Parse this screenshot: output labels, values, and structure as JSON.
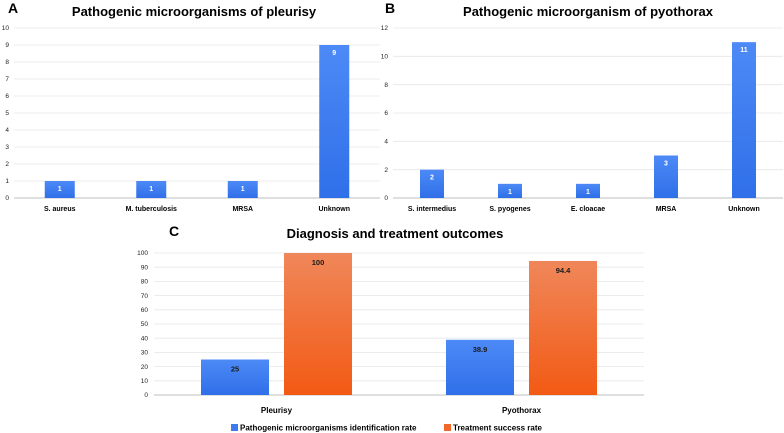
{
  "colors": {
    "blue": "#3d7bf0",
    "orange_top": "#f0875a",
    "orange_bottom": "#f25a14"
  },
  "chart_data": [
    {
      "panel": "A",
      "type": "bar",
      "title": "Pathogenic microorganisms of pleurisy",
      "categories": [
        "S. aureus",
        "M. tuberculosis",
        "MRSA",
        "Unknown"
      ],
      "values": [
        1,
        1,
        1,
        9
      ],
      "ylim": [
        0,
        10
      ],
      "yticks": [
        0,
        1,
        2,
        3,
        4,
        5,
        6,
        7,
        8,
        9,
        10
      ],
      "grid": true
    },
    {
      "panel": "B",
      "type": "bar",
      "title": "Pathogenic microorganism of pyothorax",
      "categories": [
        "S. intermedius",
        "S. pyogenes",
        "E. cloacae",
        "MRSA",
        "Unknown"
      ],
      "values": [
        2,
        1,
        1,
        3,
        11
      ],
      "ylim": [
        0,
        12
      ],
      "yticks": [
        0,
        2,
        4,
        6,
        8,
        10,
        12
      ],
      "grid": true
    },
    {
      "panel": "C",
      "type": "bar",
      "title": "Diagnosis and treatment outcomes",
      "categories": [
        "Pleurisy",
        "Pyothorax"
      ],
      "series": [
        {
          "name": "Pathogenic microorganisms identification rate",
          "values": [
            25,
            38.9
          ]
        },
        {
          "name": "Treatment success rate",
          "values": [
            100,
            94.4
          ]
        }
      ],
      "ylim": [
        0,
        100
      ],
      "yticks": [
        0,
        10,
        20,
        30,
        40,
        50,
        60,
        70,
        80,
        90,
        100
      ],
      "legend": "bottom",
      "grid": true
    }
  ]
}
